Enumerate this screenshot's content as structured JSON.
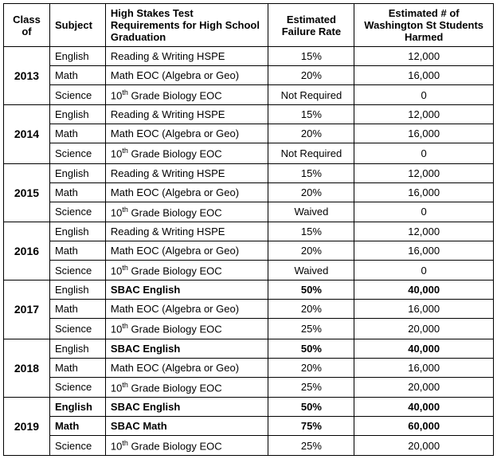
{
  "headers": {
    "class_of": "Class of",
    "subject": "Subject",
    "requirements": "High Stakes Test Requirements for High School Graduation",
    "failure_rate": "Estimated Failure Rate",
    "students_harmed": "Estimated # of Washington St Students Harmed"
  },
  "groups": [
    {
      "year": "2013",
      "rows": [
        {
          "subject": "English",
          "req": "Reading & Writing HSPE",
          "rate": "15%",
          "harmed": "12,000",
          "bold": false,
          "bold_subject": false
        },
        {
          "subject": "Math",
          "req": "Math EOC (Algebra or Geo)",
          "rate": "20%",
          "harmed": "16,000",
          "bold": false,
          "bold_subject": false
        },
        {
          "subject": "Science",
          "req": "10<sup>th</sup> Grade Biology EOC",
          "rate": "Not Required",
          "harmed": "0",
          "bold": false,
          "bold_subject": false
        }
      ]
    },
    {
      "year": "2014",
      "rows": [
        {
          "subject": "English",
          "req": "Reading & Writing HSPE",
          "rate": "15%",
          "harmed": "12,000",
          "bold": false,
          "bold_subject": false
        },
        {
          "subject": "Math",
          "req": "Math EOC (Algebra or Geo)",
          "rate": "20%",
          "harmed": "16,000",
          "bold": false,
          "bold_subject": false
        },
        {
          "subject": "Science",
          "req": "10<sup>th</sup> Grade Biology EOC",
          "rate": "Not Required",
          "harmed": "0",
          "bold": false,
          "bold_subject": false
        }
      ]
    },
    {
      "year": "2015",
      "rows": [
        {
          "subject": "English",
          "req": "Reading & Writing HSPE",
          "rate": "15%",
          "harmed": "12,000",
          "bold": false,
          "bold_subject": false
        },
        {
          "subject": "Math",
          "req": "Math EOC (Algebra or Geo)",
          "rate": "20%",
          "harmed": "16,000",
          "bold": false,
          "bold_subject": false
        },
        {
          "subject": "Science",
          "req": "10<sup>th</sup> Grade Biology EOC",
          "rate": "Waived",
          "harmed": "0",
          "bold": false,
          "bold_subject": false
        }
      ]
    },
    {
      "year": "2016",
      "rows": [
        {
          "subject": "English",
          "req": "Reading & Writing HSPE",
          "rate": "15%",
          "harmed": "12,000",
          "bold": false,
          "bold_subject": false
        },
        {
          "subject": "Math",
          "req": "Math EOC (Algebra or Geo)",
          "rate": "20%",
          "harmed": "16,000",
          "bold": false,
          "bold_subject": false
        },
        {
          "subject": "Science",
          "req": "10<sup>th</sup> Grade Biology EOC",
          "rate": "Waived",
          "harmed": "0",
          "bold": false,
          "bold_subject": false
        }
      ]
    },
    {
      "year": "2017",
      "rows": [
        {
          "subject": "English",
          "req": "SBAC English",
          "rate": "50%",
          "harmed": "40,000",
          "bold": true,
          "bold_subject": false
        },
        {
          "subject": "Math",
          "req": "Math EOC (Algebra or Geo)",
          "rate": "20%",
          "harmed": "16,000",
          "bold": false,
          "bold_subject": false
        },
        {
          "subject": "Science",
          "req": "10<sup>th</sup> Grade Biology EOC",
          "rate": "25%",
          "harmed": "20,000",
          "bold": false,
          "bold_subject": false
        }
      ]
    },
    {
      "year": "2018",
      "rows": [
        {
          "subject": "English",
          "req": "SBAC English",
          "rate": "50%",
          "harmed": "40,000",
          "bold": true,
          "bold_subject": false
        },
        {
          "subject": "Math",
          "req": "Math EOC (Algebra or Geo)",
          "rate": "20%",
          "harmed": "16,000",
          "bold": false,
          "bold_subject": false
        },
        {
          "subject": "Science",
          "req": "10<sup>th</sup> Grade Biology EOC",
          "rate": "25%",
          "harmed": "20,000",
          "bold": false,
          "bold_subject": false
        }
      ]
    },
    {
      "year": "2019",
      "rows": [
        {
          "subject": "English",
          "req": "SBAC English",
          "rate": "50%",
          "harmed": "40,000",
          "bold": true,
          "bold_subject": true
        },
        {
          "subject": "Math",
          "req": "SBAC Math",
          "rate": "75%",
          "harmed": "60,000",
          "bold": true,
          "bold_subject": true
        },
        {
          "subject": "Science",
          "req": "10<sup>th</sup> Grade Biology EOC",
          "rate": "25%",
          "harmed": "20,000",
          "bold": false,
          "bold_subject": false
        }
      ]
    }
  ]
}
